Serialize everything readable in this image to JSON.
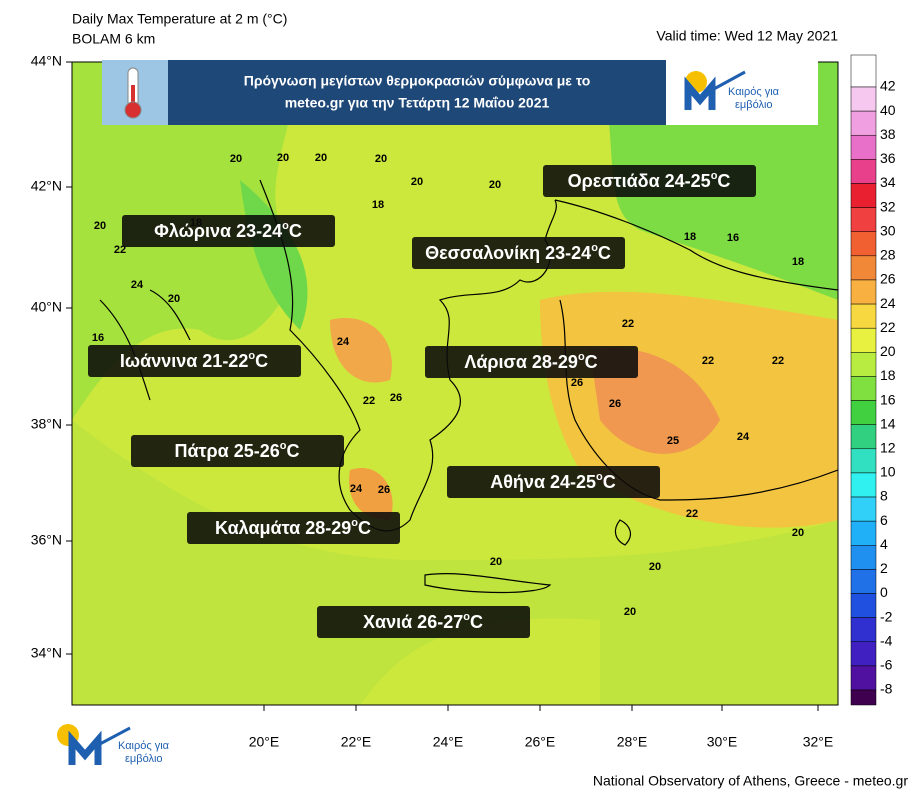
{
  "header": {
    "title": "Daily Max Temperature at 2 m (°C)",
    "model": "BOLAM 6 km",
    "valid_time": "Valid time: Wed 12 May 2021"
  },
  "banner": {
    "line1": "Πρόγνωση μεγίστων θερμοκρασιών σύμφωνα με το",
    "line2": "meteo.gr για την Τετάρτη  12 Μαΐου 2021"
  },
  "logo": {
    "line1": "Καιρός για",
    "line2": "εμβόλιο"
  },
  "unit": {
    "degree": "o",
    "letter": "C"
  },
  "cities": [
    {
      "label": "Ορεστιάδα 24-25"
    },
    {
      "label": "Φλώρινα 23-24"
    },
    {
      "label": "Θεσσαλονίκη 23-24"
    },
    {
      "label": "Ιωάννινα 21-22"
    },
    {
      "label": "Λάρισα 28-29"
    },
    {
      "label": "Πάτρα 25-26"
    },
    {
      "label": "Αθήνα 24-25"
    },
    {
      "label": "Καλαμάτα 28-29"
    },
    {
      "label": "Χανιά 26-27"
    }
  ],
  "lat_labels": [
    "44°N",
    "42°N",
    "40°N",
    "38°N",
    "36°N",
    "34°N"
  ],
  "lon_labels": [
    "20°E",
    "22°E",
    "24°E",
    "26°E",
    "28°E",
    "30°E",
    "32°E"
  ],
  "colorbar": {
    "levels": [
      42,
      40,
      38,
      36,
      34,
      32,
      30,
      28,
      26,
      24,
      22,
      20,
      18,
      16,
      14,
      12,
      10,
      8,
      6,
      4,
      2,
      0,
      -2,
      -4,
      -6,
      -8
    ],
    "colors": [
      "#f6c8f0",
      "#f0a0e0",
      "#e870c8",
      "#e8408a",
      "#e82030",
      "#f04040",
      "#f06030",
      "#f08838",
      "#f8b040",
      "#f8d840",
      "#e8f040",
      "#b8ec40",
      "#80e040",
      "#40d040",
      "#30d080",
      "#30e0c0",
      "#30f0f0",
      "#30d0f8",
      "#20b0f8",
      "#2090f0",
      "#2070e8",
      "#2050e0",
      "#3030d0",
      "#4020c0",
      "#5010a0",
      "#400050"
    ]
  },
  "contour_labels": [
    20,
    20,
    20,
    20,
    20,
    20,
    18,
    20,
    22,
    24,
    20,
    18,
    18,
    16,
    18,
    16,
    24,
    22,
    26,
    26,
    22,
    22,
    25,
    24,
    22,
    26,
    24,
    26,
    20,
    20,
    20,
    20,
    22
  ],
  "footer": "National Observatory of Athens, Greece - meteo.gr"
}
